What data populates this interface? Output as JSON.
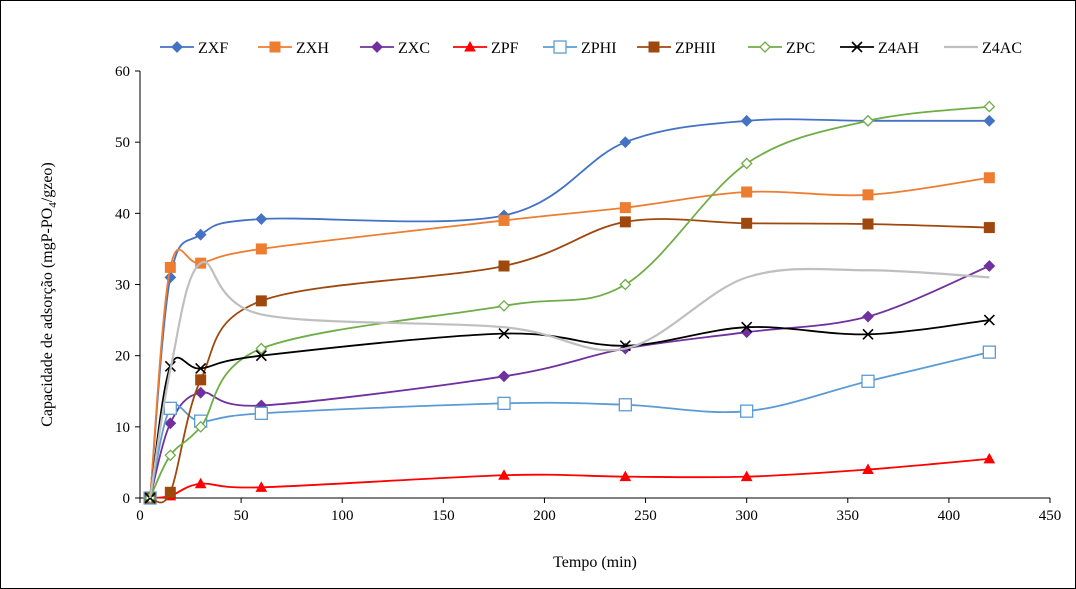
{
  "chart_data": {
    "type": "line",
    "xlabel": "Tempo (min)",
    "ylabel": "Capacidade de adsorção (mgP-PO",
    "ylabel_sub": "4",
    "ylabel_tail": "/gzeo)",
    "xlim": [
      0,
      450
    ],
    "ylim": [
      0,
      60
    ],
    "xticks": [
      0,
      50,
      100,
      150,
      200,
      250,
      300,
      350,
      400,
      450
    ],
    "yticks": [
      0,
      10,
      20,
      30,
      40,
      50,
      60
    ],
    "legend_position": "top",
    "grid": false,
    "series": [
      {
        "name": "ZXF",
        "color": "#4472C4",
        "marker": "diamond-filled",
        "x": [
          5,
          15,
          30,
          60,
          180,
          240,
          300,
          360,
          420
        ],
        "y": [
          0,
          31,
          37,
          39.2,
          39.7,
          50,
          53,
          53,
          53
        ]
      },
      {
        "name": "ZXH",
        "color": "#ED7D31",
        "marker": "square-filled",
        "x": [
          5,
          15,
          30,
          60,
          180,
          240,
          300,
          360,
          420
        ],
        "y": [
          0,
          32.4,
          33,
          35,
          39,
          40.8,
          43,
          42.6,
          45
        ]
      },
      {
        "name": "ZXC",
        "color": "#7030A0",
        "marker": "diamond-filled",
        "x": [
          5,
          15,
          30,
          60,
          180,
          240,
          300,
          360,
          420
        ],
        "y": [
          0,
          10.5,
          14.8,
          13,
          17.1,
          21,
          23.3,
          25.5,
          32.6
        ]
      },
      {
        "name": "ZPF",
        "color": "#FF0000",
        "marker": "triangle-filled",
        "x": [
          5,
          15,
          30,
          60,
          180,
          240,
          300,
          360,
          420
        ],
        "y": [
          0,
          0.3,
          2,
          1.5,
          3.2,
          3,
          3,
          4,
          5.5
        ]
      },
      {
        "name": "ZPHI",
        "color": "#5B9BD5",
        "marker": "square-open",
        "x": [
          5,
          15,
          30,
          60,
          180,
          240,
          300,
          360,
          420
        ],
        "y": [
          0,
          12.6,
          10.8,
          11.9,
          13.3,
          13.1,
          12.2,
          16.4,
          20.5
        ]
      },
      {
        "name": "ZPHII",
        "color": "#9E480E",
        "marker": "square-filled",
        "x": [
          5,
          15,
          30,
          60,
          180,
          240,
          300,
          360,
          420
        ],
        "y": [
          0,
          0.8,
          16.6,
          27.7,
          32.6,
          38.8,
          38.6,
          38.5,
          38
        ]
      },
      {
        "name": "ZPC",
        "color": "#70AD47",
        "marker": "diamond-open",
        "x": [
          5,
          15,
          30,
          60,
          180,
          240,
          300,
          360,
          420
        ],
        "y": [
          0,
          6,
          10,
          21,
          27,
          30,
          47,
          53,
          55
        ]
      },
      {
        "name": "Z4AH",
        "color": "#000000",
        "marker": "x",
        "x": [
          5,
          15,
          30,
          60,
          180,
          240,
          300,
          360,
          420
        ],
        "y": [
          0,
          18.5,
          18.2,
          20,
          23.1,
          21.4,
          24,
          23,
          25
        ]
      },
      {
        "name": "Z4AC",
        "color": "#BFBFBF",
        "marker": "none",
        "x": [
          5,
          15,
          30,
          60,
          180,
          240,
          300,
          360,
          420
        ],
        "y": [
          0,
          18,
          33,
          25.8,
          24,
          21,
          31,
          32,
          31
        ]
      }
    ]
  }
}
